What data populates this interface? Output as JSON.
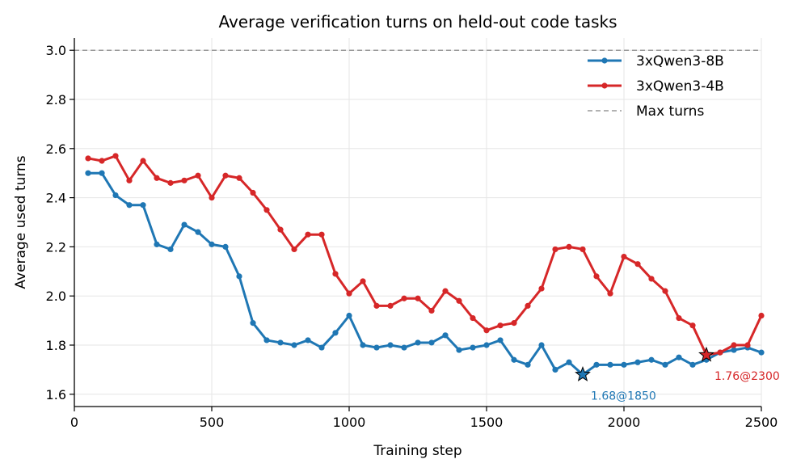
{
  "chart_data": {
    "type": "line",
    "title": "Average verification turns on held-out code tasks",
    "xlabel": "Training step",
    "ylabel": "Average used turns",
    "xlim": [
      0,
      2500
    ],
    "ylim": [
      1.55,
      3.05
    ],
    "xticks": [
      0,
      500,
      1000,
      1500,
      2000,
      2500
    ],
    "yticks": [
      1.6,
      1.8,
      2.0,
      2.2,
      2.4,
      2.6,
      2.8,
      3.0
    ],
    "grid": true,
    "legend_position": "top-right",
    "x": [
      50,
      100,
      150,
      200,
      250,
      300,
      350,
      400,
      450,
      500,
      550,
      600,
      650,
      700,
      750,
      800,
      850,
      900,
      950,
      1000,
      1050,
      1100,
      1150,
      1200,
      1250,
      1300,
      1350,
      1400,
      1450,
      1500,
      1550,
      1600,
      1650,
      1700,
      1750,
      1800,
      1850,
      1900,
      1950,
      2000,
      2050,
      2100,
      2150,
      2200,
      2250,
      2300,
      2350,
      2400,
      2450,
      2500
    ],
    "series": [
      {
        "name": "3xQwen3-8B",
        "color": "#1f77b4",
        "values": [
          2.5,
          2.5,
          2.41,
          2.37,
          2.37,
          2.21,
          2.19,
          2.29,
          2.26,
          2.21,
          2.2,
          2.08,
          1.89,
          1.82,
          1.81,
          1.8,
          1.82,
          1.79,
          1.85,
          1.92,
          1.8,
          1.79,
          1.8,
          1.79,
          1.81,
          1.81,
          1.84,
          1.78,
          1.79,
          1.8,
          1.82,
          1.74,
          1.72,
          1.8,
          1.7,
          1.73,
          1.68,
          1.72,
          1.72,
          1.72,
          1.73,
          1.74,
          1.72,
          1.75,
          1.72,
          1.74,
          1.77,
          1.78,
          1.79,
          1.77
        ],
        "best": {
          "x": 1850,
          "y": 1.68,
          "label": "1.68@1850"
        }
      },
      {
        "name": "3xQwen3-4B",
        "color": "#d62728",
        "values": [
          2.56,
          2.55,
          2.57,
          2.47,
          2.55,
          2.48,
          2.46,
          2.47,
          2.49,
          2.4,
          2.49,
          2.48,
          2.42,
          2.35,
          2.27,
          2.19,
          2.25,
          2.25,
          2.09,
          2.01,
          2.06,
          1.96,
          1.96,
          1.99,
          1.99,
          1.94,
          2.02,
          1.98,
          1.91,
          1.86,
          1.88,
          1.89,
          1.96,
          2.03,
          2.19,
          2.2,
          2.19,
          2.08,
          2.01,
          2.16,
          2.13,
          2.07,
          2.02,
          1.91,
          1.88,
          1.76,
          1.77,
          1.8,
          1.8,
          1.92
        ],
        "best": {
          "x": 2300,
          "y": 1.76,
          "label": "1.76@2300"
        }
      }
    ],
    "reference_line": {
      "name": "Max turns",
      "y": 3.0,
      "color": "#999999"
    }
  }
}
